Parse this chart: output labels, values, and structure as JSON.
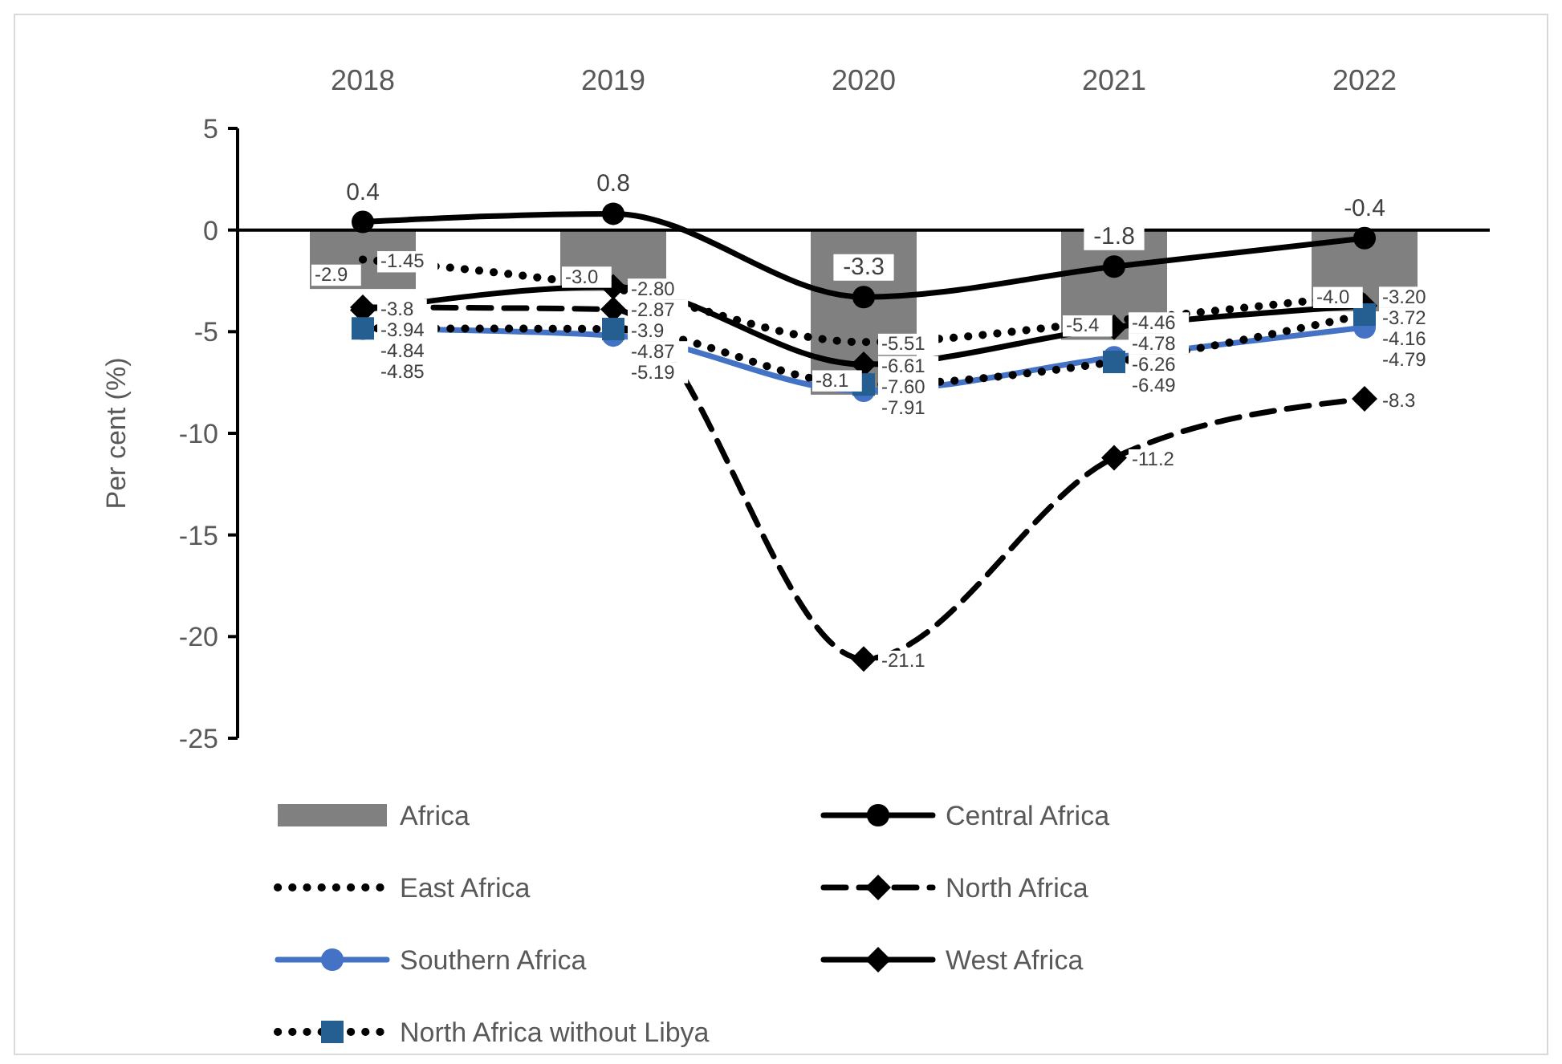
{
  "chart_data": {
    "type": "line",
    "ylabel": "Per cent (%)",
    "categories": [
      "2018",
      "2019",
      "2020",
      "2021",
      "2022"
    ],
    "ylim": [
      -25,
      5
    ],
    "yticks": [
      -25,
      -20,
      -15,
      -10,
      -5,
      0,
      5
    ],
    "legend": "bottom",
    "series": [
      {
        "name": "Africa",
        "type": "bar",
        "color": "#808080",
        "values": [
          -2.9,
          -3.0,
          -8.1,
          -5.4,
          -4.0
        ],
        "value_labels": [
          "-2.9",
          "-3.0",
          "-8.1",
          "-5.4",
          "-4.0"
        ]
      },
      {
        "name": "Central Africa",
        "color": "#000000",
        "marker": "circle",
        "line_style": "solid",
        "values": [
          0.4,
          0.8,
          -3.3,
          -1.8,
          -0.4
        ],
        "value_labels": [
          "0.4",
          "0.8",
          "-3.3",
          "-1.8",
          "-0.4"
        ]
      },
      {
        "name": "East Africa",
        "color": "#000000",
        "marker": "none",
        "line_style": "dotted",
        "values": [
          -1.45,
          -2.87,
          -5.51,
          -4.46,
          -3.2
        ],
        "value_labels": [
          "-1.45",
          "-2.87",
          "-5.51",
          "-4.46",
          "-3.20"
        ]
      },
      {
        "name": "North Africa",
        "color": "#000000",
        "marker": "diamond",
        "line_style": "dashed",
        "values": [
          -3.8,
          -3.9,
          -21.1,
          -11.2,
          -8.3
        ],
        "value_labels": [
          "-3.8",
          "-3.9",
          "-21.1",
          "-11.2",
          "-8.3"
        ]
      },
      {
        "name": "Southern Africa",
        "color": "#4472c4",
        "marker": "circle",
        "line_style": "solid",
        "values": [
          -4.85,
          -5.19,
          -7.91,
          -6.26,
          -4.79
        ],
        "value_labels": [
          "-4.85",
          "-5.19",
          "-7.91",
          "-6.26",
          "-4.79"
        ]
      },
      {
        "name": "West Africa",
        "color": "#000000",
        "marker": "diamond",
        "line_style": "solid",
        "values": [
          -3.94,
          -2.8,
          -6.61,
          -4.78,
          -3.72
        ],
        "value_labels": [
          "-3.94",
          "-2.80",
          "-6.61",
          "-4.78",
          "-3.72"
        ]
      },
      {
        "name": "North Africa without Libya",
        "color": "#000000",
        "colors": [
          "#255e91",
          "#255e91",
          "#255e91",
          "#255e91",
          "#255e91"
        ],
        "marker": "square",
        "line_style": "dotted",
        "values": [
          -4.84,
          -4.87,
          -7.6,
          -6.49,
          -4.16
        ],
        "value_labels": [
          "-4.84",
          "-4.87",
          "-7.60",
          "-6.49",
          "-4.16"
        ]
      }
    ]
  }
}
